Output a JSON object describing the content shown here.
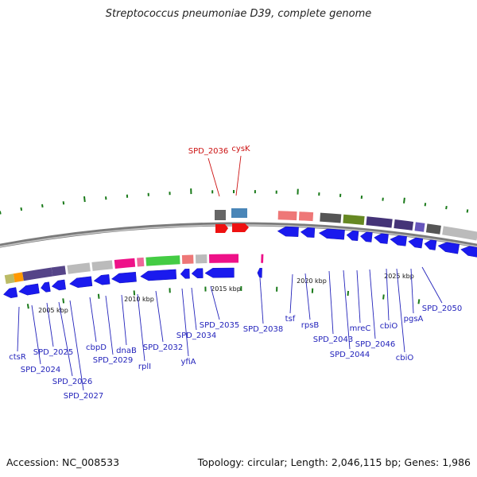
{
  "header": {
    "title": "Streptococcus pneumoniae D39, complete genome"
  },
  "footer": {
    "accession": "Accession: NC_008533",
    "summary": "Topology: circular; Length: 2,046,115 bp; Genes: 1,986"
  },
  "colors": {
    "forward_gene": "#1a1aee",
    "reverse_gene": "#1a1aee",
    "highlight_gene": "#ee1111",
    "label_blue": "#2323bb",
    "label_red": "#cc1111",
    "tick": "#1a7a1a",
    "backbone": "#888888"
  },
  "genome_map": {
    "scale_labels": [
      "2005 kbp",
      "2010 kbp",
      "2015 kbp",
      "2020 kbp",
      "2025 kbp"
    ],
    "gene_labels": [
      {
        "text": "ctsR",
        "color": "blue"
      },
      {
        "text": "SPD_2024",
        "color": "blue"
      },
      {
        "text": "SPD_2025",
        "color": "blue"
      },
      {
        "text": "SPD_2026",
        "color": "blue"
      },
      {
        "text": "SPD_2027",
        "color": "blue"
      },
      {
        "text": "cbpD",
        "color": "blue"
      },
      {
        "text": "SPD_2029",
        "color": "blue"
      },
      {
        "text": "dnaB",
        "color": "blue"
      },
      {
        "text": "rplI",
        "color": "blue"
      },
      {
        "text": "SPD_2032",
        "color": "blue"
      },
      {
        "text": "yfiA",
        "color": "blue"
      },
      {
        "text": "SPD_2034",
        "color": "blue"
      },
      {
        "text": "SPD_2035",
        "color": "blue"
      },
      {
        "text": "SPD_2036",
        "color": "red"
      },
      {
        "text": "cysK",
        "color": "red"
      },
      {
        "text": "SPD_2038",
        "color": "blue"
      },
      {
        "text": "tsf",
        "color": "blue"
      },
      {
        "text": "rpsB",
        "color": "blue"
      },
      {
        "text": "SPD_2043",
        "color": "blue"
      },
      {
        "text": "SPD_2044",
        "color": "blue"
      },
      {
        "text": "mreC",
        "color": "blue"
      },
      {
        "text": "SPD_2046",
        "color": "blue"
      },
      {
        "text": "cbiO",
        "color": "blue"
      },
      {
        "text": "cbiO",
        "color": "blue"
      },
      {
        "text": "pgsA",
        "color": "blue"
      },
      {
        "text": "SPD_2050",
        "color": "blue"
      }
    ]
  }
}
